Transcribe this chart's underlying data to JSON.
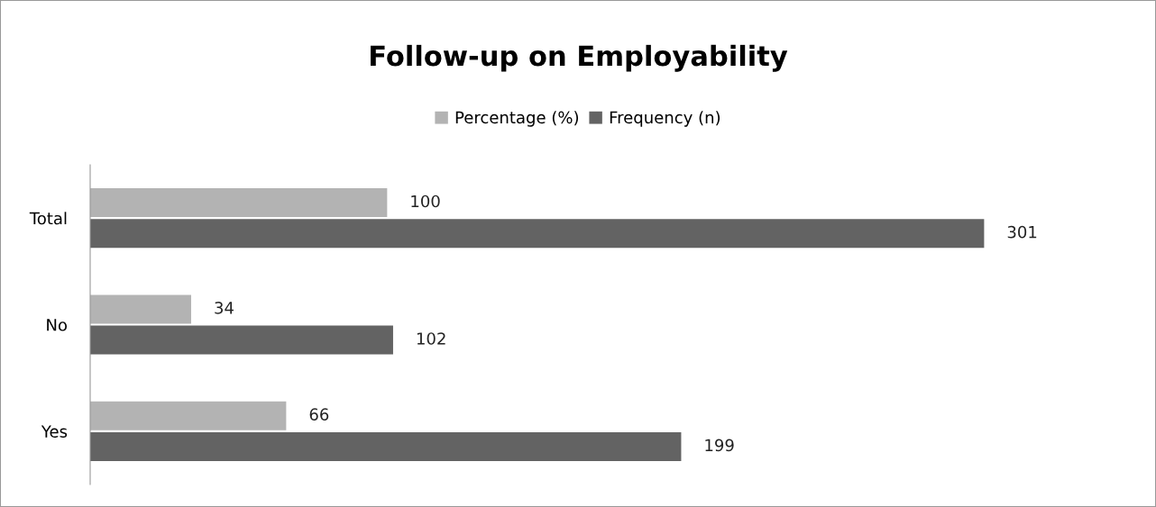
{
  "chart_data": {
    "type": "bar",
    "orientation": "horizontal",
    "title": "Follow-up on Employability",
    "categories": [
      "Total",
      "No",
      "Yes"
    ],
    "series": [
      {
        "name": "Percentage (%)",
        "color": "#b3b3b3",
        "values": [
          100,
          34,
          66
        ]
      },
      {
        "name": "Frequency (n)",
        "color": "#636363",
        "values": [
          301,
          102,
          199
        ]
      }
    ],
    "data_labels": true,
    "legend": "top",
    "grid": false
  }
}
